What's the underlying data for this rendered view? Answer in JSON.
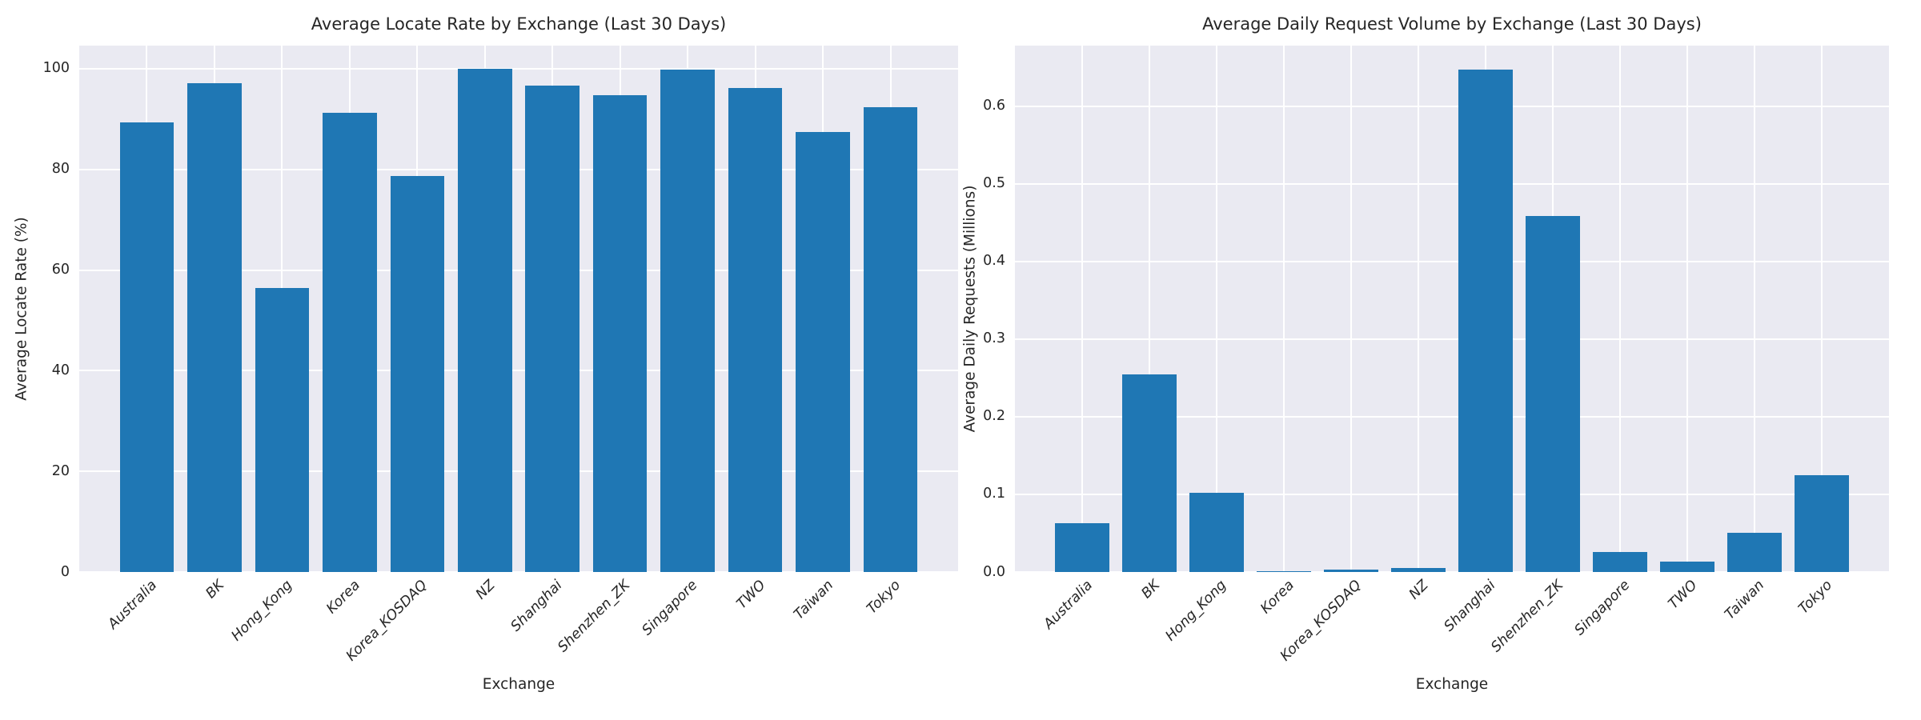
{
  "figure": {
    "background_color": "#ffffff",
    "plot_background_color": "#eaeaf2",
    "grid_color": "#ffffff",
    "bar_color": "#1f77b4",
    "text_color": "#262626"
  },
  "chart_data": [
    {
      "type": "bar",
      "title": "Average Locate Rate by Exchange (Last 30 Days)",
      "xlabel": "Exchange",
      "ylabel": "Average Locate Rate (%)",
      "categories": [
        "Australia",
        "BK",
        "Hong_Kong",
        "Korea",
        "Korea_KOSDAQ",
        "NZ",
        "Shanghai",
        "Shenzhen_ZK",
        "Singapore",
        "TWO",
        "Taiwan",
        "Tokyo"
      ],
      "values": [
        89.4,
        97.1,
        56.4,
        91.3,
        78.7,
        100.0,
        96.6,
        94.7,
        99.9,
        96.1,
        87.5,
        92.3
      ],
      "yticks": [
        0,
        20,
        40,
        60,
        80,
        100
      ],
      "ytick_labels": [
        "0",
        "20",
        "40",
        "60",
        "80",
        "100"
      ],
      "ylim": [
        0,
        104.6
      ],
      "grid": true,
      "legend_position": "none",
      "xtick_rotation_deg": 45
    },
    {
      "type": "bar",
      "title": "Average Daily Request Volume by Exchange (Last 30 Days)",
      "xlabel": "Exchange",
      "ylabel": "Average Daily Requests (Millions)",
      "categories": [
        "Australia",
        "BK",
        "Hong_Kong",
        "Korea",
        "Korea_KOSDAQ",
        "NZ",
        "Shanghai",
        "Shenzhen_ZK",
        "Singapore",
        "TWO",
        "Taiwan",
        "Tokyo"
      ],
      "values": [
        0.063,
        0.255,
        0.102,
        0.001,
        0.003,
        0.005,
        0.647,
        0.459,
        0.026,
        0.013,
        0.05,
        0.125
      ],
      "yticks": [
        0.0,
        0.1,
        0.2,
        0.3,
        0.4,
        0.5,
        0.6
      ],
      "ytick_labels": [
        "0.0",
        "0.1",
        "0.2",
        "0.3",
        "0.4",
        "0.5",
        "0.6"
      ],
      "ylim": [
        0,
        0.678
      ],
      "grid": true,
      "legend_position": "none",
      "xtick_rotation_deg": 45
    }
  ]
}
